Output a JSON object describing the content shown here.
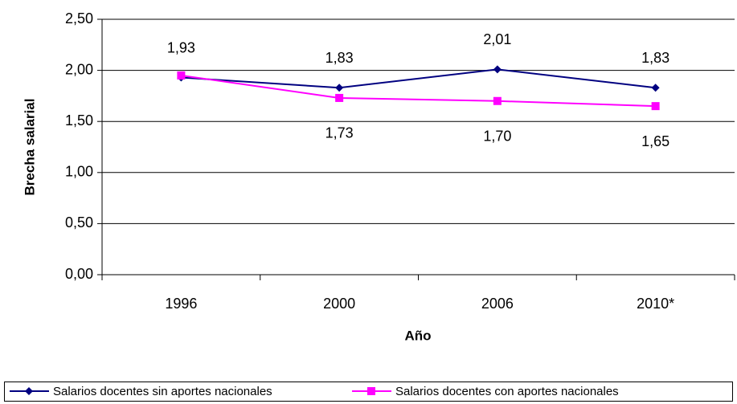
{
  "chart_data": {
    "type": "line",
    "x_label": "Año",
    "y_label": "Brecha salarial",
    "categories": [
      "1996",
      "2000",
      "2006",
      "2010*"
    ],
    "series": [
      {
        "name": "Salarios docentes sin aportes nacionales",
        "color": "#000080",
        "marker": "diamond",
        "values": [
          1.93,
          1.83,
          2.01,
          1.83
        ],
        "value_labels": [
          "1,93",
          "1,83",
          "2,01",
          "1,83"
        ]
      },
      {
        "name": "Salarios docentes con aportes nacionales",
        "color": "#ff00ff",
        "marker": "square",
        "values": [
          1.95,
          1.73,
          1.7,
          1.65
        ],
        "value_labels": [
          null,
          "1,73",
          "1,70",
          "1,65"
        ]
      }
    ],
    "ylim": [
      0,
      2.5
    ],
    "yticks": [
      {
        "value": 0,
        "label": "0,00"
      },
      {
        "value": 0.5,
        "label": "0,50"
      },
      {
        "value": 1,
        "label": "1,00"
      },
      {
        "value": 1.5,
        "label": "1,50"
      },
      {
        "value": 2,
        "label": "2,00"
      },
      {
        "value": 2.5,
        "label": "2,50"
      }
    ],
    "grid": true,
    "legend": "bottom"
  }
}
